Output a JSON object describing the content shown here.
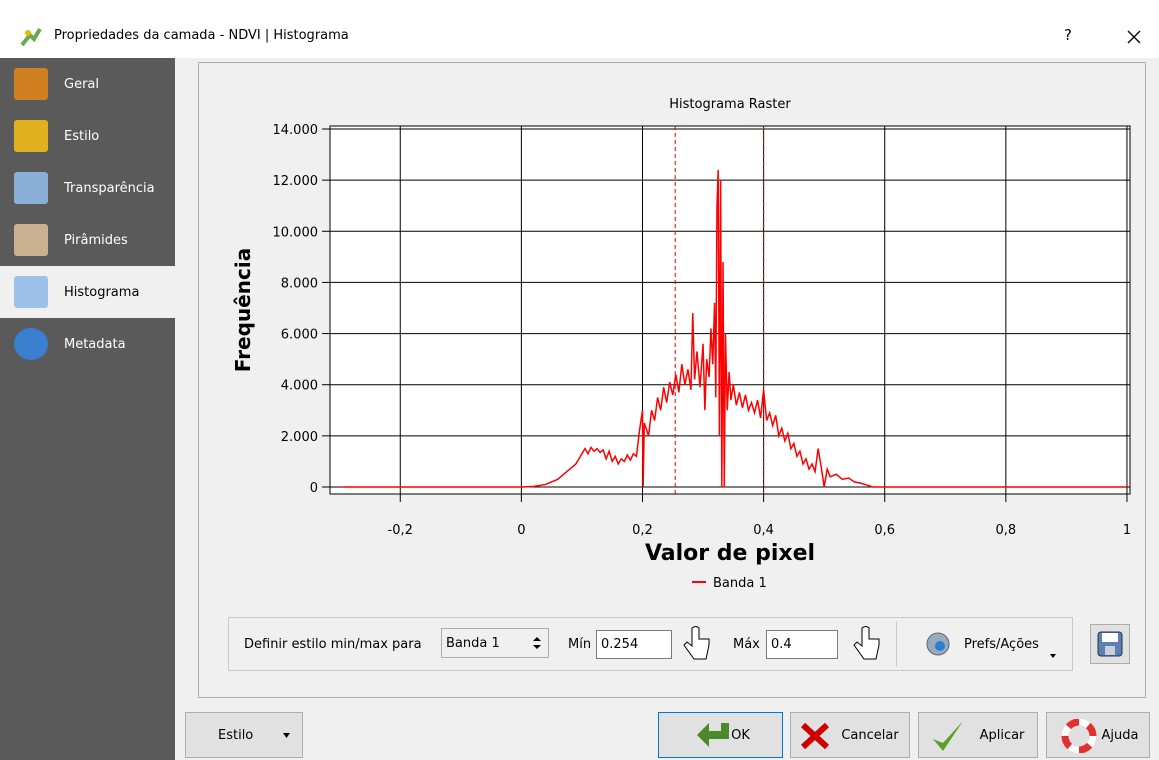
{
  "window": {
    "title": "Propriedades da camada - NDVI | Histograma",
    "help": "?"
  },
  "sidebar": {
    "items": [
      "Geral",
      "Estilo",
      "Transparência",
      "Pirâmides",
      "Histograma",
      "Metadata"
    ],
    "selected_index": 4
  },
  "chart_data": {
    "type": "line",
    "title": "Histograma Raster",
    "x_label": "Valor de pixel",
    "y_label": "Frequência",
    "xlim": [
      -0.316,
      1.005
    ],
    "ylim": [
      -274,
      14117
    ],
    "xticks": [
      {
        "value": -0.2,
        "label": "-0,2"
      },
      0,
      {
        "value": 0.2,
        "label": "0,2"
      },
      {
        "value": 0.4,
        "label": "0,4"
      },
      {
        "value": 0.6,
        "label": "0,6"
      },
      {
        "value": 0.8,
        "label": "0,8"
      },
      1
    ],
    "yticks": [
      0,
      {
        "value": 2000,
        "label": "2.000"
      },
      {
        "value": 4000,
        "label": "4.000"
      },
      {
        "value": 6000,
        "label": "6.000"
      },
      {
        "value": 8000,
        "label": "8.000"
      },
      {
        "value": 10000,
        "label": "10.000"
      },
      {
        "value": 12000,
        "label": "12.000"
      },
      {
        "value": 14000,
        "label": "14.000"
      }
    ],
    "grid": true,
    "min": 0.254,
    "max": 0.4,
    "marker_color": "#e00000",
    "series": [
      {
        "name": "Banda 1",
        "color": "#ff0000",
        "x": [
          -0.294,
          0.0,
          0.02,
          0.04,
          0.06,
          0.08,
          0.09,
          0.1,
          0.105,
          0.11,
          0.115,
          0.12,
          0.125,
          0.13,
          0.135,
          0.14,
          0.145,
          0.15,
          0.155,
          0.16,
          0.165,
          0.17,
          0.175,
          0.18,
          0.185,
          0.19,
          0.195,
          0.2,
          0.201,
          0.203,
          0.21,
          0.215,
          0.22,
          0.225,
          0.23,
          0.235,
          0.24,
          0.245,
          0.25,
          0.255,
          0.26,
          0.265,
          0.27,
          0.275,
          0.28,
          0.283,
          0.286,
          0.29,
          0.295,
          0.3,
          0.303,
          0.306,
          0.31,
          0.313,
          0.316,
          0.319,
          0.321,
          0.323,
          0.325,
          0.327,
          0.329,
          0.331,
          0.333,
          0.335,
          0.337,
          0.34,
          0.343,
          0.346,
          0.35,
          0.355,
          0.36,
          0.365,
          0.37,
          0.375,
          0.38,
          0.385,
          0.39,
          0.395,
          0.4,
          0.405,
          0.41,
          0.415,
          0.42,
          0.425,
          0.43,
          0.435,
          0.44,
          0.445,
          0.45,
          0.455,
          0.46,
          0.465,
          0.47,
          0.475,
          0.48,
          0.485,
          0.49,
          0.495,
          0.5,
          0.505,
          0.51,
          0.52,
          0.53,
          0.54,
          0.55,
          0.56,
          0.57,
          0.58,
          1.0
        ],
        "values": [
          0,
          0,
          20,
          100,
          300,
          700,
          900,
          1300,
          1500,
          1300,
          1550,
          1400,
          1500,
          1350,
          1450,
          1100,
          1400,
          1000,
          1200,
          900,
          1100,
          1000,
          1250,
          1050,
          1300,
          1200,
          2200,
          3000,
          0,
          2500,
          2000,
          3000,
          2600,
          3500,
          3000,
          3900,
          3300,
          4100,
          3600,
          4400,
          3700,
          4800,
          4000,
          4600,
          3800,
          6800,
          4200,
          5300,
          3900,
          5600,
          3000,
          5000,
          4300,
          6200,
          4800,
          7200,
          3500,
          11000,
          12400,
          2000,
          12000,
          0,
          8800,
          0,
          6000,
          3000,
          4500,
          3400,
          4000,
          3200,
          3700,
          3100,
          3600,
          3000,
          3300,
          2900,
          3400,
          2700,
          3800,
          2600,
          2900,
          2400,
          2800,
          2000,
          2300,
          1800,
          2100,
          1500,
          1700,
          1200,
          1400,
          900,
          1100,
          700,
          900,
          600,
          1500,
          800,
          0,
          700,
          400,
          500,
          300,
          350,
          200,
          150,
          80,
          0,
          0
        ]
      }
    ]
  },
  "controls": {
    "label": "Definir estilo min/max para",
    "band": "Banda 1",
    "min_label": "Mín",
    "max_label": "Máx",
    "prefs": "Prefs/Ações"
  },
  "buttons": {
    "style": "Estilo",
    "ok": "OK",
    "cancel": "Cancelar",
    "apply": "Aplicar",
    "help": "Ajuda"
  }
}
